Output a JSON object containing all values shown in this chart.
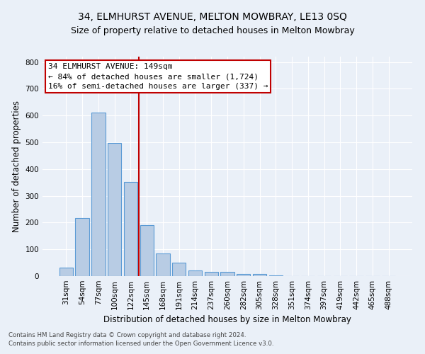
{
  "title": "34, ELMHURST AVENUE, MELTON MOWBRAY, LE13 0SQ",
  "subtitle": "Size of property relative to detached houses in Melton Mowbray",
  "xlabel": "Distribution of detached houses by size in Melton Mowbray",
  "ylabel": "Number of detached properties",
  "footnote1": "Contains HM Land Registry data © Crown copyright and database right 2024.",
  "footnote2": "Contains public sector information licensed under the Open Government Licence v3.0.",
  "bar_labels": [
    "31sqm",
    "54sqm",
    "77sqm",
    "100sqm",
    "122sqm",
    "145sqm",
    "168sqm",
    "191sqm",
    "214sqm",
    "237sqm",
    "260sqm",
    "282sqm",
    "305sqm",
    "328sqm",
    "351sqm",
    "374sqm",
    "397sqm",
    "419sqm",
    "442sqm",
    "465sqm",
    "488sqm"
  ],
  "bar_values": [
    32,
    218,
    610,
    498,
    353,
    190,
    85,
    50,
    22,
    17,
    15,
    7,
    9,
    2,
    0,
    1,
    0,
    0,
    0,
    0,
    0
  ],
  "bar_color": "#b8cce4",
  "bar_edge_color": "#5b9bd5",
  "vline_x": 4.5,
  "vline_color": "#c00000",
  "annotation_text": "34 ELMHURST AVENUE: 149sqm\n← 84% of detached houses are smaller (1,724)\n16% of semi-detached houses are larger (337) →",
  "annotation_box_color": "#ffffff",
  "annotation_box_edge_color": "#c00000",
  "ylim": [
    0,
    820
  ],
  "yticks": [
    0,
    100,
    200,
    300,
    400,
    500,
    600,
    700,
    800
  ],
  "background_color": "#eaf0f8",
  "grid_color": "#ffffff",
  "title_fontsize": 10,
  "subtitle_fontsize": 9,
  "axis_label_fontsize": 8.5,
  "tick_fontsize": 7.5,
  "annotation_fontsize": 8
}
